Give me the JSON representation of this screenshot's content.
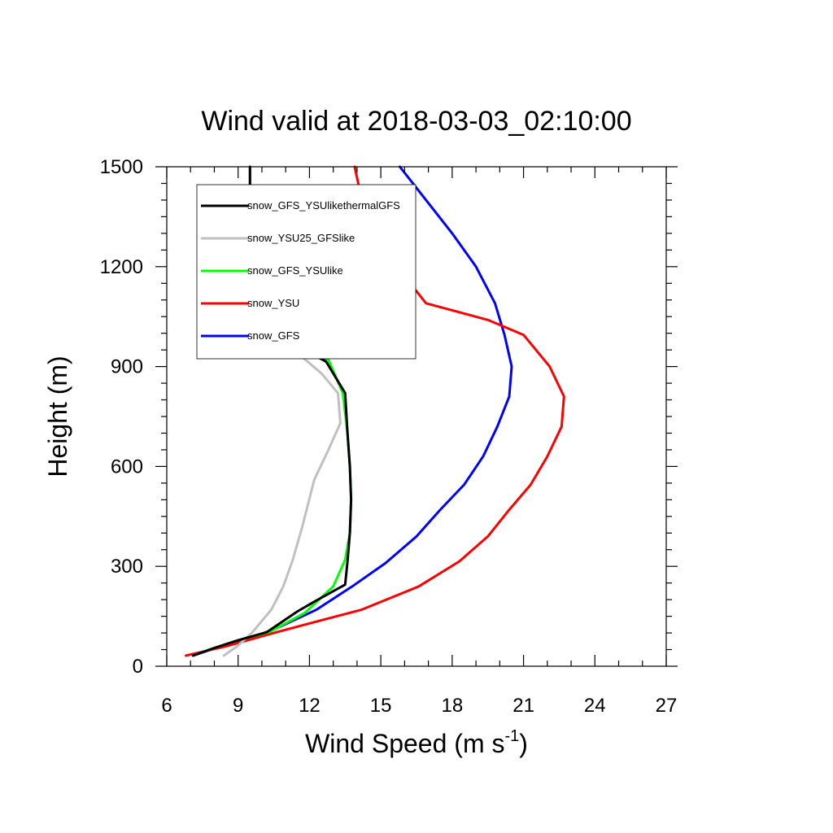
{
  "chart_data": {
    "type": "line",
    "title": "Wind valid at 2018-03-03_02:10:00",
    "xlabel": "Wind Speed (m s",
    "xlabel_sup": "-1",
    "xlabel_end": ")",
    "ylabel": "Height (m)",
    "xlim": [
      6,
      27
    ],
    "ylim": [
      0,
      1500
    ],
    "xticks": [
      "6",
      "9",
      "12",
      "15",
      "18",
      "21",
      "24",
      "27"
    ],
    "yticks": [
      "0",
      "300",
      "600",
      "900",
      "1200",
      "1500"
    ],
    "grid": false,
    "legend_position": "top-left",
    "series": [
      {
        "name": "snow_GFS_YSUlikethermalGFS",
        "color": "#000000",
        "points": [
          [
            7.1,
            32
          ],
          [
            8.0,
            55
          ],
          [
            9.0,
            78
          ],
          [
            10.2,
            102
          ],
          [
            11.5,
            165
          ],
          [
            12.3,
            198
          ],
          [
            13.5,
            245
          ],
          [
            13.6,
            315
          ],
          [
            13.7,
            400
          ],
          [
            13.75,
            500
          ],
          [
            13.7,
            600
          ],
          [
            13.6,
            700
          ],
          [
            13.5,
            820
          ],
          [
            12.7,
            915
          ],
          [
            11.0,
            980
          ],
          [
            10.2,
            1005
          ],
          [
            9.6,
            1100
          ],
          [
            9.5,
            1200
          ],
          [
            9.5,
            1300
          ],
          [
            9.5,
            1400
          ],
          [
            9.5,
            1500
          ]
        ]
      },
      {
        "name": "snow_YSU25_GFSlike",
        "color": "#c0c0c0",
        "points": [
          [
            8.4,
            32
          ],
          [
            9.0,
            62
          ],
          [
            9.6,
            102
          ],
          [
            10.4,
            170
          ],
          [
            10.9,
            240
          ],
          [
            11.3,
            320
          ],
          [
            11.7,
            420
          ],
          [
            12.2,
            560
          ],
          [
            12.8,
            650
          ],
          [
            13.3,
            730
          ],
          [
            13.2,
            820
          ],
          [
            12.5,
            880
          ],
          [
            11.5,
            940
          ],
          [
            10.5,
            980
          ],
          [
            9.9,
            1010
          ],
          [
            9.6,
            1100
          ],
          [
            9.5,
            1200
          ],
          [
            9.5,
            1300
          ],
          [
            9.5,
            1400
          ],
          [
            9.5,
            1500
          ]
        ]
      },
      {
        "name": "snow_GFS_YSUlike",
        "color": "#00ff00",
        "points": [
          [
            7.1,
            32
          ],
          [
            8.0,
            55
          ],
          [
            9.0,
            78
          ],
          [
            10.3,
            102
          ],
          [
            11.8,
            160
          ],
          [
            13.0,
            240
          ],
          [
            13.5,
            320
          ],
          [
            13.7,
            400
          ],
          [
            13.75,
            500
          ],
          [
            13.7,
            600
          ],
          [
            13.6,
            700
          ],
          [
            13.4,
            820
          ],
          [
            12.8,
            920
          ],
          [
            11.0,
            980
          ],
          [
            10.2,
            1005
          ],
          [
            9.6,
            1100
          ],
          [
            9.5,
            1200
          ],
          [
            9.5,
            1300
          ],
          [
            9.5,
            1400
          ],
          [
            9.5,
            1500
          ]
        ]
      },
      {
        "name": "snow_YSU",
        "color": "#ff0000",
        "points": [
          [
            6.8,
            32
          ],
          [
            8.5,
            60
          ],
          [
            10.5,
            100
          ],
          [
            12.6,
            140
          ],
          [
            14.2,
            170
          ],
          [
            16.6,
            240
          ],
          [
            18.3,
            315
          ],
          [
            19.5,
            390
          ],
          [
            20.4,
            470
          ],
          [
            21.3,
            545
          ],
          [
            22.0,
            630
          ],
          [
            22.6,
            720
          ],
          [
            22.7,
            810
          ],
          [
            22.1,
            900
          ],
          [
            21.0,
            995
          ],
          [
            19.5,
            1040
          ],
          [
            16.9,
            1090
          ],
          [
            15.9,
            1180
          ],
          [
            14.9,
            1300
          ],
          [
            14.2,
            1400
          ],
          [
            13.9,
            1500
          ]
        ]
      },
      {
        "name": "snow_GFS",
        "color": "#0000ff",
        "points": [
          [
            7.1,
            32
          ],
          [
            8.2,
            58
          ],
          [
            9.4,
            80
          ],
          [
            10.8,
            120
          ],
          [
            12.3,
            170
          ],
          [
            13.8,
            240
          ],
          [
            15.2,
            310
          ],
          [
            16.5,
            390
          ],
          [
            17.5,
            470
          ],
          [
            18.5,
            545
          ],
          [
            19.3,
            630
          ],
          [
            19.9,
            720
          ],
          [
            20.4,
            810
          ],
          [
            20.5,
            900
          ],
          [
            20.2,
            995
          ],
          [
            19.8,
            1090
          ],
          [
            19.0,
            1200
          ],
          [
            18.0,
            1300
          ],
          [
            16.9,
            1400
          ],
          [
            15.8,
            1500
          ]
        ]
      }
    ]
  }
}
